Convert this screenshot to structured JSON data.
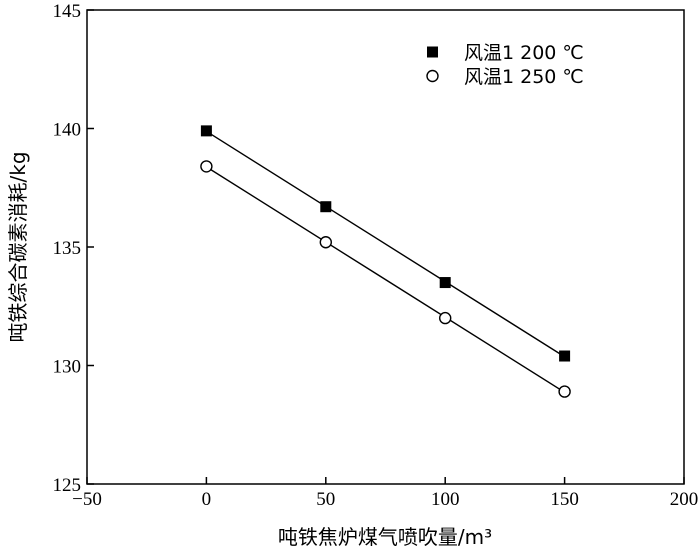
{
  "chart_data": {
    "type": "scatter",
    "title": "",
    "xlabel": "吨铁焦炉煤气喷吹量/m³",
    "ylabel": "吨铁综合碳素消耗/kg",
    "xlim": [
      -50,
      200
    ],
    "ylim": [
      125,
      145
    ],
    "xticks": [
      "−50",
      "0",
      "50",
      "100",
      "150",
      "200"
    ],
    "yticks": [
      "125",
      "130",
      "135",
      "140",
      "145"
    ],
    "xtick_values": [
      -50,
      0,
      50,
      100,
      150,
      200
    ],
    "ytick_values": [
      125,
      130,
      135,
      140,
      145
    ],
    "grid": false,
    "legend_position": "top-right",
    "series": [
      {
        "name": "风温1 200 ℃",
        "marker": "filled-square",
        "fit_line": true,
        "x": [
          0,
          50,
          100,
          150
        ],
        "y": [
          139.9,
          136.7,
          133.5,
          130.4
        ]
      },
      {
        "name": "风温1 250 ℃",
        "marker": "open-circle",
        "fit_line": true,
        "x": [
          0,
          50,
          100,
          150
        ],
        "y": [
          138.4,
          135.2,
          132.0,
          128.9
        ]
      }
    ]
  }
}
